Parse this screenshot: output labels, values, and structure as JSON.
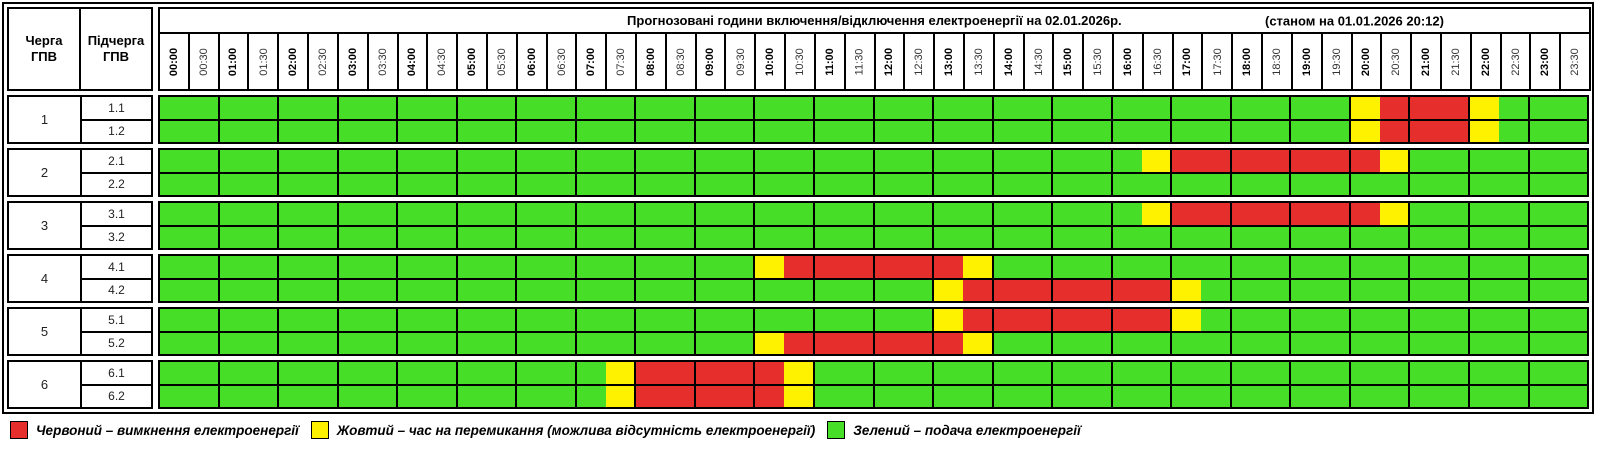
{
  "palette": {
    "green": "#47DE28",
    "yellow": "#FFF200",
    "red": "#E62E2C",
    "grid_line": "#000000"
  },
  "header": {
    "queue_col_label": "Черга\nГПВ",
    "subqueue_col_label": "Підчерга\nГПВ",
    "title": "Прогнозовані години включення/відключення електроенергії на 02.01.2026р.",
    "as_of": "(станом на 01.01.2026 20:12)"
  },
  "chart_data": {
    "type": "heatmap",
    "x_labels": [
      "00:00",
      "00:30",
      "01:00",
      "01:30",
      "02:00",
      "02:30",
      "03:00",
      "03:30",
      "04:00",
      "04:30",
      "05:00",
      "05:30",
      "06:00",
      "06:30",
      "07:00",
      "07:30",
      "08:00",
      "08:30",
      "09:00",
      "09:30",
      "10:00",
      "10:30",
      "11:00",
      "11:30",
      "12:00",
      "12:30",
      "13:00",
      "13:30",
      "14:00",
      "14:30",
      "15:00",
      "15:30",
      "16:00",
      "16:30",
      "17:00",
      "17:30",
      "18:00",
      "18:30",
      "19:00",
      "19:30",
      "20:00",
      "20:30",
      "21:00",
      "21:30",
      "22:00",
      "22:30",
      "23:00",
      "23:30"
    ],
    "groups": [
      {
        "queue": "1",
        "subrows": [
          {
            "label": "1.1",
            "segments": [
              {
                "color": "green",
                "from": "00:00",
                "to": "20:00"
              },
              {
                "color": "yellow",
                "from": "20:00",
                "to": "20:30"
              },
              {
                "color": "red",
                "from": "20:30",
                "to": "22:00"
              },
              {
                "color": "yellow",
                "from": "22:00",
                "to": "22:30"
              },
              {
                "color": "green",
                "from": "22:30",
                "to": "24:00"
              }
            ]
          },
          {
            "label": "1.2",
            "segments": [
              {
                "color": "green",
                "from": "00:00",
                "to": "20:00"
              },
              {
                "color": "yellow",
                "from": "20:00",
                "to": "20:30"
              },
              {
                "color": "red",
                "from": "20:30",
                "to": "22:00"
              },
              {
                "color": "yellow",
                "from": "22:00",
                "to": "22:30"
              },
              {
                "color": "green",
                "from": "22:30",
                "to": "24:00"
              }
            ]
          }
        ]
      },
      {
        "queue": "2",
        "subrows": [
          {
            "label": "2.1",
            "segments": [
              {
                "color": "green",
                "from": "00:00",
                "to": "16:30"
              },
              {
                "color": "yellow",
                "from": "16:30",
                "to": "17:00"
              },
              {
                "color": "red",
                "from": "17:00",
                "to": "20:30"
              },
              {
                "color": "yellow",
                "from": "20:30",
                "to": "21:00"
              },
              {
                "color": "green",
                "from": "21:00",
                "to": "24:00"
              }
            ]
          },
          {
            "label": "2.2",
            "segments": [
              {
                "color": "green",
                "from": "00:00",
                "to": "24:00"
              }
            ]
          }
        ]
      },
      {
        "queue": "3",
        "subrows": [
          {
            "label": "3.1",
            "segments": [
              {
                "color": "green",
                "from": "00:00",
                "to": "16:30"
              },
              {
                "color": "yellow",
                "from": "16:30",
                "to": "17:00"
              },
              {
                "color": "red",
                "from": "17:00",
                "to": "20:30"
              },
              {
                "color": "yellow",
                "from": "20:30",
                "to": "21:00"
              },
              {
                "color": "green",
                "from": "21:00",
                "to": "24:00"
              }
            ]
          },
          {
            "label": "3.2",
            "segments": [
              {
                "color": "green",
                "from": "00:00",
                "to": "24:00"
              }
            ]
          }
        ]
      },
      {
        "queue": "4",
        "subrows": [
          {
            "label": "4.1",
            "segments": [
              {
                "color": "green",
                "from": "00:00",
                "to": "10:00"
              },
              {
                "color": "yellow",
                "from": "10:00",
                "to": "10:30"
              },
              {
                "color": "red",
                "from": "10:30",
                "to": "13:30"
              },
              {
                "color": "yellow",
                "from": "13:30",
                "to": "14:00"
              },
              {
                "color": "green",
                "from": "14:00",
                "to": "24:00"
              }
            ]
          },
          {
            "label": "4.2",
            "segments": [
              {
                "color": "green",
                "from": "00:00",
                "to": "13:00"
              },
              {
                "color": "yellow",
                "from": "13:00",
                "to": "13:30"
              },
              {
                "color": "red",
                "from": "13:30",
                "to": "17:00"
              },
              {
                "color": "yellow",
                "from": "17:00",
                "to": "17:30"
              },
              {
                "color": "green",
                "from": "17:30",
                "to": "24:00"
              }
            ]
          }
        ]
      },
      {
        "queue": "5",
        "subrows": [
          {
            "label": "5.1",
            "segments": [
              {
                "color": "green",
                "from": "00:00",
                "to": "13:00"
              },
              {
                "color": "yellow",
                "from": "13:00",
                "to": "13:30"
              },
              {
                "color": "red",
                "from": "13:30",
                "to": "17:00"
              },
              {
                "color": "yellow",
                "from": "17:00",
                "to": "17:30"
              },
              {
                "color": "green",
                "from": "17:30",
                "to": "24:00"
              }
            ]
          },
          {
            "label": "5.2",
            "segments": [
              {
                "color": "green",
                "from": "00:00",
                "to": "10:00"
              },
              {
                "color": "yellow",
                "from": "10:00",
                "to": "10:30"
              },
              {
                "color": "red",
                "from": "10:30",
                "to": "13:30"
              },
              {
                "color": "yellow",
                "from": "13:30",
                "to": "14:00"
              },
              {
                "color": "green",
                "from": "14:00",
                "to": "24:00"
              }
            ]
          }
        ]
      },
      {
        "queue": "6",
        "subrows": [
          {
            "label": "6.1",
            "segments": [
              {
                "color": "green",
                "from": "00:00",
                "to": "07:30"
              },
              {
                "color": "yellow",
                "from": "07:30",
                "to": "08:00"
              },
              {
                "color": "red",
                "from": "08:00",
                "to": "10:30"
              },
              {
                "color": "yellow",
                "from": "10:30",
                "to": "11:00"
              },
              {
                "color": "green",
                "from": "11:00",
                "to": "24:00"
              }
            ]
          },
          {
            "label": "6.2",
            "segments": [
              {
                "color": "green",
                "from": "00:00",
                "to": "07:30"
              },
              {
                "color": "yellow",
                "from": "07:30",
                "to": "08:00"
              },
              {
                "color": "red",
                "from": "08:00",
                "to": "10:30"
              },
              {
                "color": "yellow",
                "from": "10:30",
                "to": "11:00"
              },
              {
                "color": "green",
                "from": "11:00",
                "to": "24:00"
              }
            ]
          }
        ]
      }
    ]
  },
  "legend": [
    {
      "color": "red",
      "text": "Червоний – вимкнення електроенергії"
    },
    {
      "color": "yellow",
      "text": "Жовтий – час на перемикання (можлива відсутність електроенергії)"
    },
    {
      "color": "green",
      "text": "Зелений – подача електроенергії"
    }
  ]
}
